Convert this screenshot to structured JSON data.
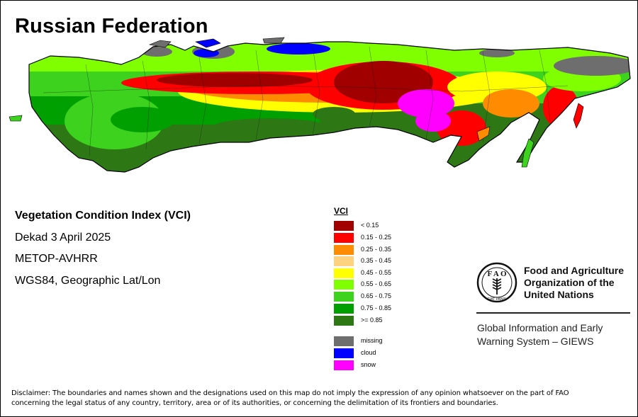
{
  "map": {
    "title": "Russian Federation",
    "subtitle": "Vegetation Condition Index (VCI)",
    "period": "Dekad 3 April 2025",
    "sensor": "METOP-AVHRR",
    "projection": "WGS84, Geographic Lat/Lon"
  },
  "legend": {
    "title": "VCI",
    "classes": [
      {
        "label": "< 0.15",
        "color": "#a00000"
      },
      {
        "label": "0.15 - 0.25",
        "color": "#ff0000"
      },
      {
        "label": "0.25 - 0.35",
        "color": "#ff8c00"
      },
      {
        "label": "0.35 - 0.45",
        "color": "#ffd27f"
      },
      {
        "label": "0.45 - 0.55",
        "color": "#ffff00"
      },
      {
        "label": "0.55 - 0.65",
        "color": "#80ff00"
      },
      {
        "label": "0.65 - 0.75",
        "color": "#3cd21e"
      },
      {
        "label": "0.75 - 0.85",
        "color": "#00a000"
      },
      {
        "label": ">= 0.85",
        "color": "#2d7814"
      }
    ],
    "special": [
      {
        "label": "missing",
        "color": "#6e6e6e"
      },
      {
        "label": "cloud",
        "color": "#0000ff"
      },
      {
        "label": "snow",
        "color": "#ff00ff"
      }
    ]
  },
  "org": {
    "logo_letters": "FAO",
    "logo_motto": "FIAT PANIS",
    "name_line1": "Food and Agriculture",
    "name_line2": "Organization of the",
    "name_line3": "United Nations",
    "system_line1": "Global Information and Early",
    "system_line2": "Warning System – GIEWS"
  },
  "disclaimer": {
    "line1": "Disclaimer: The boundaries and names shown and the designations used on this map do not imply the expression of any opinion whatsoever on the part of FAO",
    "line2": "concerning the legal status of any country, territory, area or of its authorities, or concerning the delimitation of its frontiers and boundaries."
  }
}
